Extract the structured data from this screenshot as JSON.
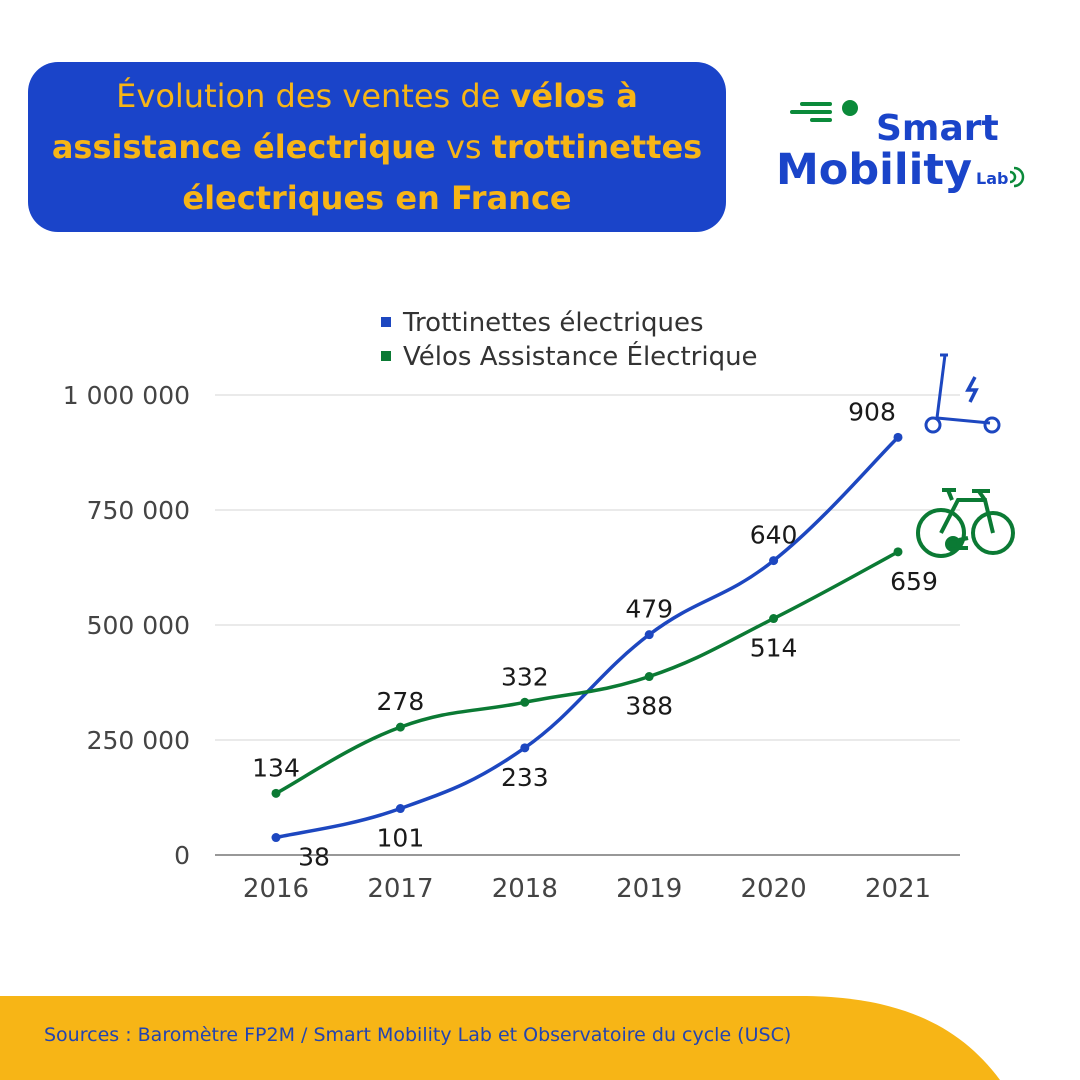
{
  "header": {
    "title_parts": [
      {
        "text": "Évolution des ventes de ",
        "bold": false
      },
      {
        "text": "vélos à assistance électrique",
        "bold": true
      },
      {
        "text": " vs ",
        "bold": false
      },
      {
        "text": "trottinettes électriques en France",
        "bold": true
      }
    ]
  },
  "logo": {
    "line1": "Smart",
    "line2": "Mobility",
    "sub": "Lab",
    "colors": {
      "blue": "#1a44c9",
      "green": "#0b8a3a"
    }
  },
  "chart_data": {
    "type": "line",
    "title": "Évolution des ventes de vélos à assistance électrique vs trottinettes électriques en France",
    "categories": [
      "2016",
      "2017",
      "2018",
      "2019",
      "2020",
      "2021"
    ],
    "ylim": [
      0,
      1000000
    ],
    "yticks": [
      0,
      250000,
      500000,
      750000,
      1000000
    ],
    "ytick_labels": [
      "0",
      "250 000",
      "500 000",
      "750 000",
      "1 000 000"
    ],
    "xlabel": "",
    "ylabel": "",
    "grid": true,
    "legend_position": "top",
    "series": [
      {
        "name": "Trottinettes électriques",
        "color": "#1d47c0",
        "values": [
          38000,
          101000,
          233000,
          479000,
          640000,
          908000
        ],
        "labels": [
          "38",
          "101",
          "233",
          "479",
          "640",
          "908"
        ],
        "icon": "scooter-icon"
      },
      {
        "name": "Vélos Assistance Électrique",
        "color": "#0b7a34",
        "values": [
          134000,
          278000,
          332000,
          388000,
          514000,
          659000
        ],
        "labels": [
          "134",
          "278",
          "332",
          "388",
          "514",
          "659"
        ],
        "icon": "ebike-icon"
      }
    ]
  },
  "footer": {
    "sources": "Sources : Baromètre FP2M / Smart Mobility Lab et Observatoire du cycle (USC)",
    "color": "#f7b516"
  }
}
